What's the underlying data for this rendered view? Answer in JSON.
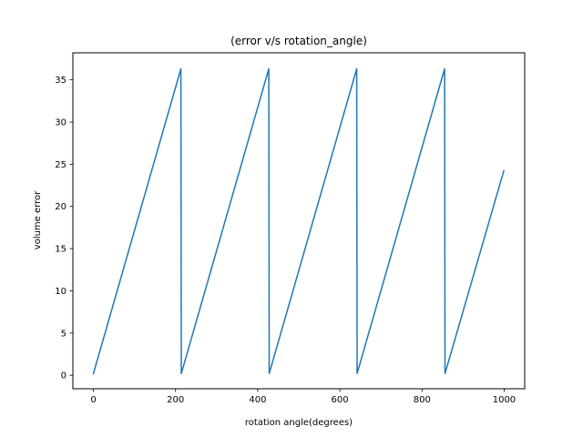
{
  "chart_data": {
    "type": "line",
    "title": "(error v/s rotation_angle)",
    "xlabel": "rotation angle(degrees)",
    "ylabel": "volume error",
    "xlim": [
      -50,
      1050
    ],
    "ylim": [
      -1.6,
      38.2
    ],
    "xticks": [
      0,
      200,
      400,
      600,
      800,
      1000
    ],
    "yticks": [
      0,
      5,
      10,
      15,
      20,
      25,
      30,
      35
    ],
    "grid": false,
    "legend": "none",
    "series": [
      {
        "color": "#1f77b4",
        "x": [
          0,
          213,
          214,
          427,
          428,
          641,
          642,
          855,
          856,
          999
        ],
        "y": [
          0.2,
          36.3,
          0.2,
          36.3,
          0.2,
          36.3,
          0.2,
          36.3,
          0.2,
          24.2
        ]
      }
    ]
  }
}
